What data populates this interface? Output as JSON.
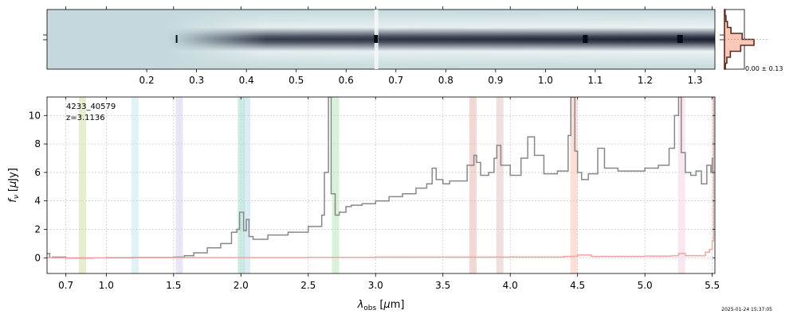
{
  "chart_data": [
    {
      "panel": "2D spectrum",
      "type": "heatmap",
      "colormap": "bone_r",
      "trace": "horizontal dark trace through the vertical center of the cutout",
      "xlabel": "",
      "x_tick_labels": [
        "0.2",
        "0.3",
        "0.4",
        "0.5",
        "0.6",
        "0.7",
        "0.8",
        "0.9",
        "1.0",
        "1.1",
        "1.2",
        "1.3"
      ],
      "x_ticks": [
        0.2,
        0.3,
        0.4,
        0.5,
        0.6,
        0.7,
        0.8,
        0.9,
        1.0,
        1.1,
        1.2,
        1.3
      ],
      "top_axis_ticks": [
        0.7,
        1.0,
        1.5,
        2.0,
        2.5,
        3.0,
        3.5,
        4.0,
        4.5,
        5.0,
        5.5
      ],
      "xlim": [
        0.0,
        1.34
      ]
    },
    {
      "panel": "cross-dispersion profile",
      "type": "line",
      "label": "0.00 ± 0.13",
      "profile": [
        0.02,
        0.05,
        0.1,
        0.22,
        0.6,
        1.0,
        0.55,
        0.2,
        0.08,
        0.03
      ]
    },
    {
      "panel": "1D spectrum",
      "type": "line",
      "annotations": [
        "4233_40579",
        "z=3.1136"
      ],
      "xlabel": "λobs [µm]",
      "ylabel": "fν [µJy]",
      "xlim": [
        0.56,
        5.52
      ],
      "ylim": [
        -1.1,
        11.3
      ],
      "x_ticks": [
        0.7,
        1.0,
        1.5,
        2.0,
        2.5,
        3.0,
        3.5,
        4.0,
        4.5,
        5.0,
        5.5
      ],
      "x_tick_labels": [
        "0.7",
        "1.0",
        "1.5",
        "2.0",
        "2.5",
        "3.0",
        "3.5",
        "4.0",
        "4.5",
        "5.0",
        "5.5"
      ],
      "y_ticks": [
        0,
        2,
        4,
        6,
        8,
        10
      ],
      "y_tick_labels": [
        "0",
        "2",
        "4",
        "6",
        "8",
        "10"
      ],
      "grid": true,
      "series": [
        {
          "color": "#888888",
          "x": [
            0.56,
            0.58,
            0.6,
            0.7,
            0.9,
            1.2,
            1.5,
            1.58,
            1.65,
            1.75,
            1.85,
            1.93,
            1.97,
            1.99,
            2.02,
            2.04,
            2.06,
            2.09,
            2.2,
            2.35,
            2.5,
            2.6,
            2.62,
            2.65,
            2.67,
            2.7,
            2.73,
            2.78,
            2.82,
            2.9,
            3.0,
            3.1,
            3.2,
            3.3,
            3.38,
            3.42,
            3.45,
            3.5,
            3.55,
            3.6,
            3.68,
            3.73,
            3.75,
            3.78,
            3.84,
            3.88,
            3.9,
            3.93,
            4.0,
            4.08,
            4.13,
            4.18,
            4.25,
            4.35,
            4.43,
            4.45,
            4.48,
            4.5,
            4.53,
            4.58,
            4.65,
            4.7,
            4.8,
            4.9,
            5.0,
            5.1,
            5.18,
            5.22,
            5.25,
            5.27,
            5.3,
            5.34,
            5.38,
            5.42,
            5.46,
            5.49,
            5.5,
            5.51
          ],
          "y": [
            0.3,
            0.0,
            0.05,
            -0.02,
            0.0,
            0.03,
            0.05,
            0.15,
            0.35,
            0.7,
            1.0,
            1.8,
            2.0,
            3.2,
            1.9,
            2.7,
            1.5,
            1.3,
            1.6,
            1.8,
            2.2,
            3.0,
            6.0,
            11.3,
            4.5,
            3.0,
            3.2,
            3.6,
            3.7,
            3.8,
            4.0,
            4.3,
            4.5,
            4.9,
            5.2,
            6.3,
            5.5,
            5.2,
            5.4,
            5.4,
            6.5,
            7.2,
            6.7,
            5.8,
            6.0,
            7.0,
            7.9,
            6.5,
            5.8,
            7.0,
            8.5,
            7.2,
            5.9,
            6.1,
            8.6,
            11.3,
            7.5,
            6.0,
            5.5,
            5.9,
            7.7,
            6.3,
            6.1,
            6.1,
            6.3,
            6.5,
            7.7,
            10.0,
            11.3,
            7.4,
            6.0,
            5.8,
            6.1,
            5.2,
            6.5,
            6.0,
            7.0,
            11.3
          ]
        },
        {
          "color": "#f4a4a0",
          "x": [
            0.56,
            1.0,
            1.5,
            2.0,
            2.5,
            3.0,
            3.5,
            4.0,
            4.4,
            4.5,
            4.6,
            5.0,
            5.2,
            5.25,
            5.3,
            5.45,
            5.48,
            5.5,
            5.51
          ],
          "y": [
            0.0,
            0.02,
            0.02,
            0.02,
            0.03,
            0.05,
            0.05,
            0.06,
            0.1,
            0.2,
            0.1,
            0.12,
            0.15,
            0.3,
            0.15,
            0.4,
            0.6,
            1.2,
            11.3
          ]
        }
      ],
      "line_markers": [
        {
          "x": 0.82,
          "color": "#cfe0a8"
        },
        {
          "x": 1.21,
          "color": "#c8e8f0"
        },
        {
          "x": 1.54,
          "color": "#d8d0ee"
        },
        {
          "x": 2.0,
          "color": "#a6dccc"
        },
        {
          "x": 2.04,
          "color": "#c0dcec"
        },
        {
          "x": 2.7,
          "color": "#b8e6b8"
        },
        {
          "x": 3.72,
          "color": "#e8b8b0"
        },
        {
          "x": 3.92,
          "color": "#e3c5c0"
        },
        {
          "x": 4.47,
          "color": "#fcc6b2"
        },
        {
          "x": 5.27,
          "color": "#f6d2e2"
        }
      ]
    }
  ],
  "timestamp": "2025-01-24 15:37:05"
}
